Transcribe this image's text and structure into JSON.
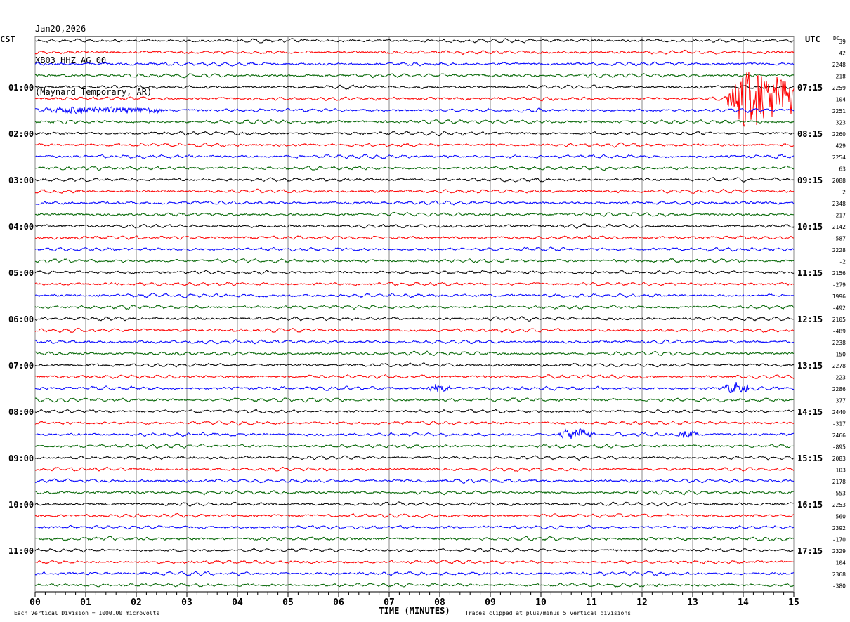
{
  "header": {
    "date": "Jan20,2026",
    "station": "XB03 HHZ AG 00",
    "location": "(Maynard Temporary, AR)"
  },
  "chart_data": {
    "type": "line",
    "title": "XB03 HHZ AG 00 helicorder",
    "xlabel": "TIME (MINUTES)",
    "left_timezone": "CST",
    "right_timezone": "UTC",
    "dc_label": "DC",
    "x_range": [
      0,
      15
    ],
    "x_ticks": [
      "00",
      "01",
      "02",
      "03",
      "04",
      "05",
      "06",
      "07",
      "08",
      "09",
      "10",
      "11",
      "12",
      "13",
      "14",
      "15"
    ],
    "rows_per_hour": 4,
    "row_count": 48,
    "colors": [
      "#000000",
      "#ff0000",
      "#0000ff",
      "#006400"
    ],
    "left_hour_labels": [
      "01:00",
      "02:00",
      "03:00",
      "04:00",
      "05:00",
      "06:00",
      "07:00",
      "08:00",
      "09:00",
      "10:00",
      "11:00"
    ],
    "right_hour_labels": [
      "07:15",
      "08:15",
      "09:15",
      "10:15",
      "11:15",
      "12:15",
      "13:15",
      "14:15",
      "15:15",
      "16:15",
      "17:15"
    ],
    "dc_offsets": [
      "39",
      "42",
      "2248",
      "218",
      "2259",
      "104",
      "2251",
      "323",
      "2260",
      "429",
      "2254",
      "63",
      "2088",
      "2",
      "2348",
      "-217",
      "2142",
      "-587",
      "2228",
      "-2",
      "2156",
      "-279",
      "1996",
      "-492",
      "2105",
      "-489",
      "2238",
      "150",
      "2278",
      "-223",
      "2286",
      "377",
      "2440",
      "-317",
      "2466",
      "-895",
      "2083",
      "103",
      "2178",
      "-553",
      "2253",
      "560",
      "2392",
      "-170",
      "2329",
      "104",
      "2368",
      "-380"
    ],
    "events": [
      {
        "row": 5,
        "start_min": 13.6,
        "end_min": 15.0,
        "amplitude": 5
      },
      {
        "row": 6,
        "start_min": 0.0,
        "end_min": 2.5,
        "amplitude": 0.6
      },
      {
        "row": 30,
        "start_min": 7.7,
        "end_min": 8.2,
        "amplitude": 0.6
      },
      {
        "row": 30,
        "start_min": 13.6,
        "end_min": 14.1,
        "amplitude": 0.9
      },
      {
        "row": 34,
        "start_min": 10.3,
        "end_min": 11.0,
        "amplitude": 1.0
      },
      {
        "row": 34,
        "start_min": 12.7,
        "end_min": 13.1,
        "amplitude": 0.6
      }
    ],
    "footer_left": "Each Vertical Division = 1000.00 microvolts",
    "footer_right": "Traces clipped at plus/minus 5 vertical divisions"
  }
}
